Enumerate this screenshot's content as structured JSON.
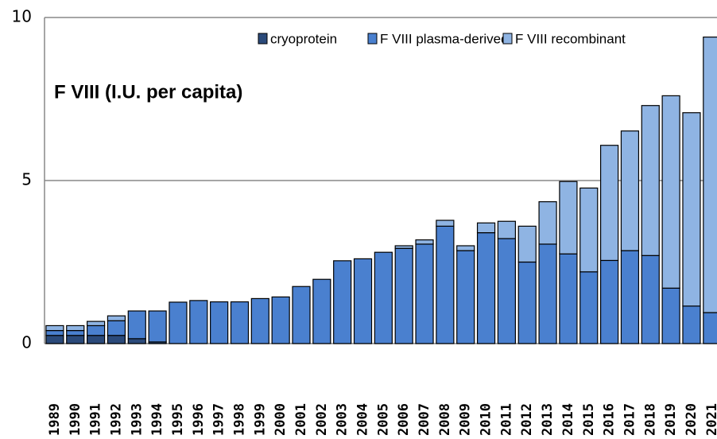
{
  "chart_data": {
    "type": "stacked_bar",
    "title": "F VIII (I.U. per capita)",
    "categories": [
      "1989",
      "1990",
      "1991",
      "1992",
      "1993",
      "1994",
      "1995",
      "1996",
      "1997",
      "1998",
      "1999",
      "2000",
      "2001",
      "2002",
      "2003",
      "2004",
      "2005",
      "2006",
      "2007",
      "2008",
      "2009",
      "2010",
      "2011",
      "2012",
      "2013",
      "2014",
      "2015",
      "2016",
      "2017",
      "2018",
      "2019",
      "2020",
      "2021"
    ],
    "series": [
      {
        "name": "cryoprotein",
        "color": "#2b4a7a",
        "values": [
          0.25,
          0.25,
          0.25,
          0.25,
          0.15,
          0.05,
          0,
          0,
          0,
          0,
          0,
          0,
          0,
          0,
          0,
          0,
          0,
          0,
          0,
          0,
          0,
          0,
          0,
          0,
          0,
          0,
          0,
          0,
          0,
          0,
          0,
          0,
          0
        ]
      },
      {
        "name": "F VIII plasma-derived",
        "color": "#4a80cf",
        "values": [
          0.15,
          0.15,
          0.3,
          0.45,
          0.85,
          0.95,
          1.27,
          1.32,
          1.28,
          1.28,
          1.38,
          1.43,
          1.75,
          1.97,
          2.54,
          2.6,
          2.8,
          2.92,
          3.05,
          3.6,
          2.85,
          3.4,
          3.22,
          2.5,
          3.05,
          2.75,
          2.2,
          2.55,
          2.85,
          2.7,
          1.7,
          1.15,
          0.95
        ]
      },
      {
        "name": "F VIII recombinant",
        "color": "#8fb4e3",
        "values": [
          0.15,
          0.15,
          0.13,
          0.15,
          0,
          0,
          0,
          0,
          0,
          0,
          0,
          0,
          0,
          0,
          0,
          0,
          0,
          0.08,
          0.13,
          0.18,
          0.15,
          0.3,
          0.53,
          1.1,
          1.3,
          2.22,
          2.57,
          3.53,
          3.67,
          4.6,
          5.9,
          5.93,
          8.45
        ]
      }
    ],
    "ylim": [
      0,
      10
    ],
    "yticks": [
      0,
      5,
      10
    ],
    "grid": true
  }
}
